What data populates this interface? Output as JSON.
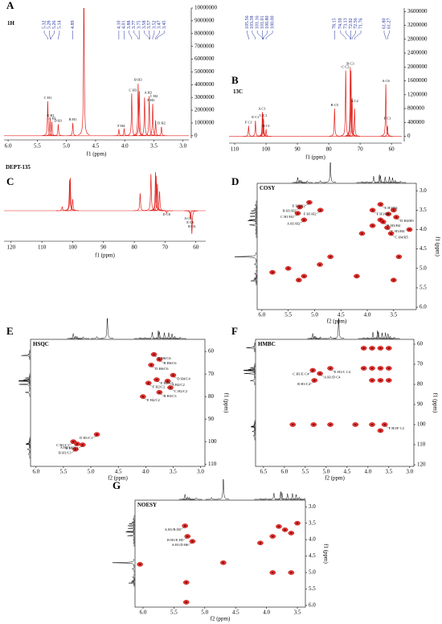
{
  "chart_data": [
    {
      "type": "spectrum",
      "label": "A",
      "title": "1H",
      "xlabel": "f1 (ppm)",
      "xlim": [
        6.07,
        2.9
      ],
      "xticks": [
        {
          "value": 6,
          "label": "6.0"
        },
        5.5,
        {
          "value": 5,
          "label": "5.0"
        },
        4.5,
        {
          "value": 4,
          "label": "4.0"
        },
        3.5,
        {
          "value": 3,
          "label": "3.0"
        }
      ],
      "ylim": [
        -200000,
        10000000
      ],
      "yticks": [
        0,
        1000000,
        2000000,
        3000000,
        4000000,
        5000000,
        6000000,
        7000000,
        8000000,
        9000000,
        10000000
      ],
      "shift_labels": [
        5.32,
        5.28,
        5.26,
        5.14,
        4.89,
        {
          "value": 4.1,
          "label": "4.10"
        },
        4.01,
        3.88,
        3.77,
        3.75,
        3.58,
        3.57,
        3.52,
        3.47,
        3.45
      ],
      "peaks": [
        {
          "x": 5.32,
          "y": 2700000
        },
        {
          "x": 5.28,
          "y": 1300000
        },
        {
          "x": 5.25,
          "y": 1100000
        },
        {
          "x": 5.14,
          "y": 900000
        },
        {
          "x": 4.89,
          "y": 1000000
        },
        {
          "x": 4.7,
          "y": 12000000
        },
        {
          "x": 4.1,
          "y": 500000
        },
        {
          "x": 4.01,
          "y": 550000
        },
        {
          "x": 3.88,
          "y": 3300000
        },
        {
          "x": 3.77,
          "y": 4100000
        },
        {
          "x": 3.75,
          "y": 3500000
        },
        {
          "x": 3.66,
          "y": 3000000
        },
        {
          "x": 3.58,
          "y": 3100000
        },
        {
          "x": 3.52,
          "y": 2500000
        },
        {
          "x": 3.47,
          "y": 1200000
        },
        {
          "x": 3.37,
          "y": 700000
        }
      ],
      "annotations": [
        {
          "text": "C H1",
          "x": 5.32
        },
        {
          "text": "E H1",
          "x": 5.27
        },
        {
          "text": "A H1",
          "x": 5.24
        },
        {
          "text": "D H1",
          "x": 5.14
        },
        {
          "text": "B H1",
          "x": 4.89
        },
        {
          "text": "F H4",
          "x": 4.06
        },
        {
          "text": "C H3",
          "x": 3.86
        },
        {
          "text": "B H3",
          "x": 3.77
        },
        {
          "text": "A H2",
          "x": 3.6
        },
        {
          "text": "F H3",
          "x": 3.55
        },
        {
          "text": "C H2",
          "x": 3.5
        },
        {
          "text": "D H2",
          "x": 3.37
        }
      ]
    },
    {
      "type": "spectrum",
      "label": "B",
      "title": "13C",
      "xlabel": "f1 (ppm)",
      "xlim": [
        111.8,
        56.7
      ],
      "xticks": [
        110,
        100,
        90,
        80,
        70,
        60
      ],
      "ylim": [
        -150000,
        3700000
      ],
      "yticks": [
        0,
        400000,
        800000,
        1200000,
        1600000,
        2000000,
        2400000,
        2800000,
        3200000,
        3600000
      ],
      "shift_labels": [
        105.56,
        103.38,
        101.16,
        101.01,
        {
          "value": 100.8,
          "label": "100.80"
        },
        {
          "value": 100,
          "label": "100.00"
        },
        78.15,
        74.59,
        73.13,
        72.92,
        72.56,
        71.76,
        {
          "value": 61.8,
          "label": "61.80"
        },
        61.27
      ],
      "peaks": [
        {
          "x": 105.56,
          "y": 300000
        },
        {
          "x": 103.38,
          "y": 450000
        },
        {
          "x": 101.16,
          "y": 700000
        },
        {
          "x": 101.01,
          "y": 650000
        },
        {
          "x": 100.8,
          "y": 500000
        },
        {
          "x": 100,
          "y": 200000
        },
        {
          "x": 78.15,
          "y": 800000
        },
        {
          "x": 74.59,
          "y": 1900000
        },
        {
          "x": 73.13,
          "y": 2000000
        },
        {
          "x": 72.92,
          "y": 1900000
        },
        {
          "x": 72.56,
          "y": 1100000
        },
        {
          "x": 71.76,
          "y": 800000
        },
        {
          "x": 61.8,
          "y": 1500000
        },
        {
          "x": 61.27,
          "y": 300000
        }
      ],
      "annotations": [
        {
          "text": "F C1",
          "x": 105.56
        },
        {
          "text": "E C1",
          "x": 103.38
        },
        {
          "text": "A C1",
          "x": 101.3
        },
        {
          "text": "C C1",
          "x": 100.9
        },
        {
          "text": "D C1",
          "x": 100
        },
        {
          "text": "B C5",
          "x": 78.15
        },
        {
          "text": "C C2",
          "x": 74.7
        },
        {
          "text": "B C3",
          "x": 73.13
        },
        {
          "text": "A C2",
          "x": 71.76
        },
        {
          "text": "A C6",
          "x": 61.8
        },
        {
          "text": "F C1",
          "x": 61.27
        }
      ]
    },
    {
      "type": "spectrum",
      "label": "C",
      "title": "DEPT-135",
      "xlabel": "f1 (ppm)",
      "xlim": [
        122.3,
        56.8
      ],
      "xticks": [
        120,
        110,
        100,
        90,
        80,
        70,
        60
      ],
      "peaks": [
        {
          "x": 103.4,
          "y": 0.1
        },
        {
          "x": 101,
          "y": 0.8
        },
        {
          "x": 100.8,
          "y": 0.85
        },
        {
          "x": 100,
          "y": 0.3
        },
        {
          "x": 78.1,
          "y": 0.45
        },
        {
          "x": 74.6,
          "y": 0.95
        },
        {
          "x": 73.1,
          "y": 1
        },
        {
          "x": 72.9,
          "y": 0.9
        },
        {
          "x": 72.5,
          "y": 0.7
        },
        {
          "x": 71.8,
          "y": 0.5
        },
        {
          "x": 69.5,
          "y": -0.06
        },
        {
          "x": 61.8,
          "y": -0.2
        },
        {
          "x": 61.3,
          "y": -0.6
        }
      ],
      "annotations": [
        {
          "text": "D C6",
          "x": 69.5
        },
        {
          "text": "A C6",
          "x": 62.6
        },
        {
          "text": "E C6",
          "x": 61.8
        },
        {
          "text": "B C6",
          "x": 61.3
        }
      ]
    },
    {
      "type": "2d",
      "label": "D",
      "title": "COSY",
      "xlabel": "f2 (ppm)",
      "ylabel": "f1 (ppm)",
      "xlim": [
        6.09,
        3.07
      ],
      "ylim": [
        2.81,
        6.06
      ],
      "xticks": [
        {
          "value": 6,
          "label": "6.0"
        },
        5.5,
        {
          "value": 5,
          "label": "5.0"
        },
        4.5,
        {
          "value": 4,
          "label": "4.0"
        },
        3.5
      ],
      "yticks": [
        {
          "value": 3,
          "label": "3.0"
        },
        3.5,
        {
          "value": 4,
          "label": "4.0"
        },
        4.5,
        {
          "value": 5,
          "label": "5.0"
        },
        5.5,
        {
          "value": 6,
          "label": "6.0"
        }
      ],
      "crosspeaks": [
        {
          "x": 3.5,
          "y": 3.5
        },
        {
          "x": 3.6,
          "y": 3.6
        },
        {
          "x": 3.75,
          "y": 3.75
        },
        {
          "x": 3.9,
          "y": 3.9
        },
        {
          "x": 4.1,
          "y": 4.1
        },
        {
          "x": 4.7,
          "y": 4.7
        },
        {
          "x": 5.3,
          "y": 5.3
        },
        {
          "x": 5.2,
          "y": 5.2
        },
        {
          "x": 4.9,
          "y": 4.9
        },
        {
          "x": 5.32,
          "y": 3.58,
          "label": "C H1/H2"
        },
        {
          "x": 5.28,
          "y": 3.42,
          "label": "B H1/H2"
        },
        {
          "x": 5.2,
          "y": 3.75,
          "label": "A H1/H2"
        },
        {
          "x": 5.1,
          "y": 3.3,
          "label": "E H1/H2"
        },
        {
          "x": 4.89,
          "y": 3.5,
          "label": "F H1/H2"
        },
        {
          "x": 3.9,
          "y": 3.5,
          "label": "F H3/H4"
        },
        {
          "x": 3.75,
          "y": 3.35,
          "label": "E H3/H4"
        },
        {
          "x": 3.7,
          "y": 3.8,
          "label": "B H3/H4"
        },
        {
          "x": 3.62,
          "y": 3.95,
          "label": "C H3/H4"
        },
        {
          "x": 3.55,
          "y": 4.1,
          "label": "C H4/H5"
        },
        {
          "x": 3.45,
          "y": 3.68,
          "label": "D H4/H5"
        },
        {
          "x": 5.8,
          "y": 5.1
        },
        {
          "x": 5.5,
          "y": 5.0
        },
        {
          "x": 4.2,
          "y": 5.2
        },
        {
          "x": 3.5,
          "y": 5.3
        },
        {
          "x": 3.4,
          "y": 4.7
        },
        {
          "x": 3.2,
          "y": 4.0
        }
      ]
    },
    {
      "type": "2d",
      "label": "E",
      "title": "HSQC",
      "xlabel": "f2 (ppm)",
      "ylabel": "f1 (ppm)",
      "xlim": [
        6.1,
        2.92
      ],
      "ylim": [
        54.6,
        111
      ],
      "xticks": [
        {
          "value": 6,
          "label": "6.0"
        },
        5.5,
        {
          "value": 5,
          "label": "5.0"
        },
        4.5,
        {
          "value": 4,
          "label": "4.0"
        },
        3.5,
        {
          "value": 3,
          "label": "3.0"
        }
      ],
      "yticks": [
        60,
        70,
        80,
        90,
        100,
        110
      ],
      "crosspeaks": [
        {
          "x": 5.32,
          "y": 100,
          "label": "C H1/C1"
        },
        {
          "x": 5.25,
          "y": 101,
          "label": "A H1/C1"
        },
        {
          "x": 5.15,
          "y": 101.4,
          "label": "E H1/C1"
        },
        {
          "x": 5.28,
          "y": 103.4,
          "label": "B H1/C1"
        },
        {
          "x": 4.89,
          "y": 96.8,
          "label": "D H1/C1"
        },
        {
          "x": 3.85,
          "y": 61.3,
          "label": "C H6/C6"
        },
        {
          "x": 3.75,
          "y": 63.5,
          "label": "B H6/C6"
        },
        {
          "x": 3.9,
          "y": 66,
          "label": "D H6/C6"
        },
        {
          "x": 3.8,
          "y": 72.5,
          "label": "F H5/C5"
        },
        {
          "x": 3.6,
          "y": 73.1,
          "label": "A H2/C2"
        },
        {
          "x": 3.55,
          "y": 76,
          "label": "C H2/C2"
        },
        {
          "x": 3.75,
          "y": 78.1,
          "label": "B H3/C3"
        },
        {
          "x": 4.05,
          "y": 80,
          "label": "E H2/C2"
        },
        {
          "x": 3.5,
          "y": 70.5,
          "label": "D H4/C4"
        },
        {
          "x": 3.95,
          "y": 74,
          "label": "F H2/C2"
        }
      ]
    },
    {
      "type": "2d",
      "label": "F",
      "title": "HMBC",
      "xlabel": "f2 (ppm)",
      "ylabel": "f1 (ppm)",
      "xlim": [
        6.69,
        2.9
      ],
      "ylim": [
        57.6,
        120.8
      ],
      "xticks": [
        6.5,
        {
          "value": 6,
          "label": "6.0"
        },
        5.5,
        {
          "value": 5,
          "label": "5.0"
        },
        4.5,
        {
          "value": 4,
          "label": "4.0"
        },
        3.5,
        {
          "value": 3,
          "label": "3.0"
        }
      ],
      "yticks": [
        60,
        70,
        80,
        90,
        100,
        110,
        120
      ],
      "crosspeaks": [
        {
          "x": 5.32,
          "y": 73,
          "label": "C H1/E C4"
        },
        {
          "x": 5.28,
          "y": 78,
          "label": "B H1/C4"
        },
        {
          "x": 5.15,
          "y": 74.6,
          "label": "A H1/D C4"
        },
        {
          "x": 4.9,
          "y": 72,
          "label": "E H1/C C4"
        },
        {
          "x": 3.6,
          "y": 100,
          "label": "F H3/F C2"
        },
        {
          "x": 4.1,
          "y": 62
        },
        {
          "x": 3.9,
          "y": 62
        },
        {
          "x": 3.7,
          "y": 62
        },
        {
          "x": 3.5,
          "y": 62
        },
        {
          "x": 4.1,
          "y": 72
        },
        {
          "x": 3.9,
          "y": 72
        },
        {
          "x": 3.7,
          "y": 72
        },
        {
          "x": 3.5,
          "y": 72
        },
        {
          "x": 3.9,
          "y": 78
        },
        {
          "x": 3.7,
          "y": 78
        },
        {
          "x": 3.5,
          "y": 78
        },
        {
          "x": 5.8,
          "y": 100
        },
        {
          "x": 5.3,
          "y": 100
        },
        {
          "x": 4.9,
          "y": 100
        },
        {
          "x": 4.3,
          "y": 100
        },
        {
          "x": 3.9,
          "y": 100
        },
        {
          "x": 3.7,
          "y": 103
        }
      ]
    },
    {
      "type": "2d",
      "label": "G",
      "title": "NOESY",
      "xlabel": "f2 (ppm)",
      "ylabel": "f1 (ppm)",
      "xlim": [
        6.13,
        3.37
      ],
      "ylim": [
        2.8,
        6.05
      ],
      "xticks": [
        {
          "value": 6,
          "label": "6.0"
        },
        5.5,
        {
          "value": 5,
          "label": "5.0"
        },
        4.5,
        {
          "value": 4,
          "label": "4.0"
        },
        3.5
      ],
      "yticks": [
        {
          "value": 3,
          "label": "3.0"
        },
        3.5,
        {
          "value": 4,
          "label": "4.0"
        },
        4.5,
        {
          "value": 5,
          "label": "5.0"
        },
        5.5,
        {
          "value": 6,
          "label": "6.0"
        }
      ],
      "crosspeaks": [
        {
          "x": 5.32,
          "y": 3.58,
          "label": "A H1/B H3"
        },
        {
          "x": 5.28,
          "y": 3.9,
          "label": "B H1/E H5"
        },
        {
          "x": 5.2,
          "y": 4.05,
          "label": "A H1/D H6"
        },
        {
          "x": 4.7,
          "y": 4.7
        },
        {
          "x": 5.3,
          "y": 5.3
        },
        {
          "x": 3.5,
          "y": 3.5
        },
        {
          "x": 3.7,
          "y": 3.7
        },
        {
          "x": 3.9,
          "y": 3.9
        },
        {
          "x": 4.1,
          "y": 4.1
        },
        {
          "x": 3.6,
          "y": 3.8
        },
        {
          "x": 3.8,
          "y": 3.6
        },
        {
          "x": 3.6,
          "y": 5.0
        },
        {
          "x": 3.9,
          "y": 5.0
        },
        {
          "x": 6.05,
          "y": 4.75
        },
        {
          "x": 5.3,
          "y": 5.9
        }
      ]
    }
  ]
}
